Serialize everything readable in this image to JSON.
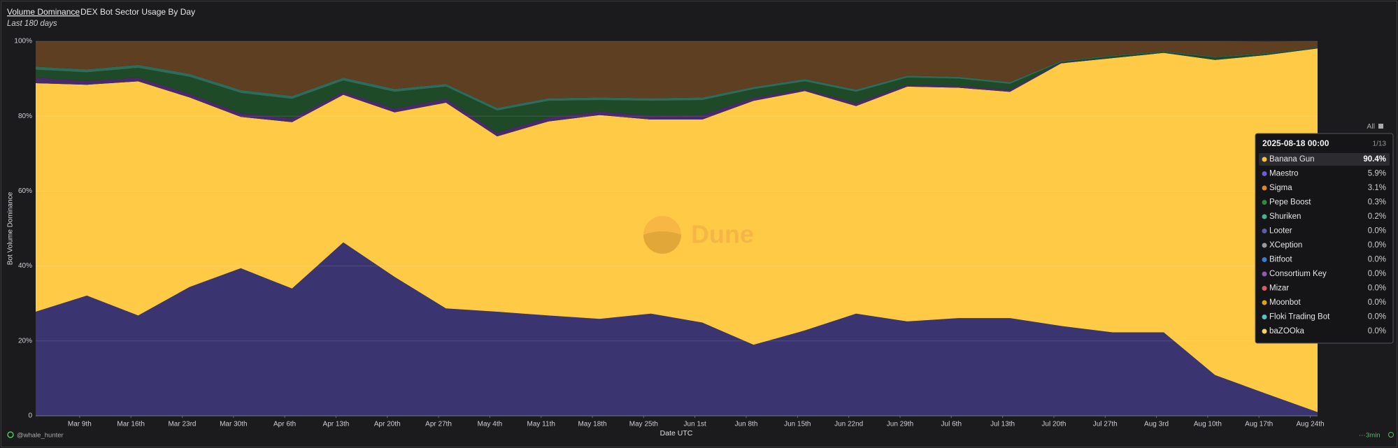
{
  "title": "Volume Dominance",
  "subtitle": "DEX Bot Sector Usage By Day",
  "period": "Last 180 days",
  "watermark": "Dune",
  "author": "@whale_hunter",
  "refresh": "3min",
  "legend_toggle": "All",
  "chart_data": {
    "type": "stacked_area",
    "x_label": "Date UTC",
    "y_label": "Bot Volume Dominance",
    "x": [
      "2025-03-03",
      "2025-03-10",
      "2025-03-17",
      "2025-03-24",
      "2025-03-31",
      "2025-04-07",
      "2025-04-14",
      "2025-04-21",
      "2025-04-28",
      "2025-05-05",
      "2025-05-12",
      "2025-05-19",
      "2025-05-26",
      "2025-06-02",
      "2025-06-09",
      "2025-06-16",
      "2025-06-23",
      "2025-06-30",
      "2025-07-07",
      "2025-07-14",
      "2025-07-21",
      "2025-07-28",
      "2025-08-04",
      "2025-08-11",
      "2025-08-18",
      "2025-08-25"
    ],
    "xlim": [
      "2025-03-03",
      "2025-08-25"
    ],
    "xticks": [
      {
        "value": "2025-03-09",
        "label": "Mar 9th"
      },
      {
        "value": "2025-03-16",
        "label": "Mar 16th"
      },
      {
        "value": "2025-03-23",
        "label": "Mar 23rd"
      },
      {
        "value": "2025-03-30",
        "label": "Mar 30th"
      },
      {
        "value": "2025-04-06",
        "label": "Apr 6th"
      },
      {
        "value": "2025-04-13",
        "label": "Apr 13th"
      },
      {
        "value": "2025-04-20",
        "label": "Apr 20th"
      },
      {
        "value": "2025-04-27",
        "label": "Apr 27th"
      },
      {
        "value": "2025-05-04",
        "label": "May 4th"
      },
      {
        "value": "2025-05-11",
        "label": "May 11th"
      },
      {
        "value": "2025-05-18",
        "label": "May 18th"
      },
      {
        "value": "2025-05-25",
        "label": "May 25th"
      },
      {
        "value": "2025-06-01",
        "label": "Jun 1st"
      },
      {
        "value": "2025-06-08",
        "label": "Jun 8th"
      },
      {
        "value": "2025-06-15",
        "label": "Jun 15th"
      },
      {
        "value": "2025-06-22",
        "label": "Jun 22nd"
      },
      {
        "value": "2025-06-29",
        "label": "Jun 29th"
      },
      {
        "value": "2025-07-06",
        "label": "Jul 6th"
      },
      {
        "value": "2025-07-13",
        "label": "Jul 13th"
      },
      {
        "value": "2025-07-20",
        "label": "Jul 20th"
      },
      {
        "value": "2025-07-27",
        "label": "Jul 27th"
      },
      {
        "value": "2025-08-03",
        "label": "Aug 3rd"
      },
      {
        "value": "2025-08-10",
        "label": "Aug 10th"
      },
      {
        "value": "2025-08-17",
        "label": "Aug 17th"
      },
      {
        "value": "2025-08-24",
        "label": "Aug 24th"
      }
    ],
    "ylim": [
      0,
      100
    ],
    "yticks": [
      0,
      {
        "value": 20,
        "label": "20%"
      },
      {
        "value": 40,
        "label": "40%"
      },
      {
        "value": 60,
        "label": "60%"
      },
      {
        "value": 80,
        "label": "80%"
      },
      {
        "value": 100,
        "label": "100%"
      }
    ],
    "grid": true,
    "series": [
      {
        "name": "Maestro",
        "color": "#3a3570",
        "values": [
          27.8,
          32.1,
          26.8,
          34.4,
          39.4,
          34.0,
          46.3,
          37.1,
          28.7,
          27.8,
          26.8,
          25.9,
          27.3,
          24.9,
          19.0,
          22.8,
          27.3,
          25.2,
          26.1,
          26.1,
          24.0,
          22.3,
          22.3,
          10.9,
          5.9,
          1.0
        ]
      },
      {
        "name": "Banana Gun",
        "color": "#ffcb47",
        "values": [
          61.0,
          56.3,
          62.5,
          50.6,
          40.4,
          44.4,
          39.4,
          43.9,
          54.9,
          46.8,
          51.8,
          54.4,
          51.8,
          54.2,
          65.1,
          63.9,
          55.4,
          62.7,
          61.5,
          60.4,
          70.1,
          73.2,
          74.6,
          84.1,
          90.4,
          97.1
        ]
      },
      {
        "name": "Looter",
        "color": "#4a2a6a",
        "values": [
          1.5,
          1.0,
          1.0,
          1.0,
          1.0,
          1.0,
          0.8,
          1.0,
          1.0,
          1.0,
          1.0,
          1.0,
          1.0,
          1.2,
          0.8,
          0.5,
          0.8,
          0.5,
          0.5,
          0.5,
          0.2,
          0,
          0,
          0,
          0,
          0
        ]
      },
      {
        "name": "Pepe Boost",
        "color": "#1f4a27",
        "values": [
          2.1,
          2.3,
          2.6,
          4.5,
          5.4,
          5.2,
          3.0,
          4.5,
          3.3,
          5.9,
          4.5,
          3.0,
          4.0,
          4.0,
          2.3,
          2.1,
          3.0,
          1.9,
          1.9,
          1.6,
          0.2,
          0.5,
          0.2,
          0.7,
          0.3,
          0.2
        ]
      },
      {
        "name": "Shuriken",
        "color": "#2e6b58",
        "values": [
          0.8,
          0.8,
          0.8,
          0.8,
          0.8,
          0.8,
          0.8,
          0.8,
          0.7,
          0.7,
          0.7,
          0.7,
          0.7,
          0.7,
          0.6,
          0.6,
          0.6,
          0.5,
          0.5,
          0.5,
          0.2,
          0.2,
          0.2,
          0.2,
          0.2,
          0.1
        ]
      },
      {
        "name": "Sigma",
        "color": "#5e3f22",
        "values": [
          6.8,
          7.5,
          6.3,
          8.7,
          13.0,
          14.6,
          9.7,
          12.7,
          11.4,
          17.8,
          15.2,
          15.0,
          15.2,
          15.0,
          12.2,
          10.1,
          12.9,
          9.2,
          9.5,
          10.9,
          5.3,
          3.8,
          2.7,
          4.1,
          3.1,
          1.6
        ]
      }
    ]
  },
  "tooltip": {
    "date": "2025-08-18 00:00",
    "page": "1/13",
    "names": [
      "Banana Gun",
      "Maestro",
      "Sigma",
      "Pepe Boost",
      "Shuriken",
      "Looter",
      "XCeption",
      "Bitfoot",
      "Consortium Key",
      "Mizar",
      "Moonbot",
      "Floki Trading Bot",
      "baZOOka"
    ],
    "colors": [
      "#f7c244",
      "#6a5ce0",
      "#e0852a",
      "#2e8b3e",
      "#4cae8f",
      "#5b5ea8",
      "#9a9a9a",
      "#3a7bd5",
      "#8e5bb0",
      "#e0566a",
      "#d9a21c",
      "#5cc2b8",
      "#f4d35e"
    ],
    "values": [
      90.4,
      5.9,
      3.1,
      0.3,
      0.2,
      0,
      0,
      0,
      0,
      0,
      0,
      0,
      0
    ],
    "value_labels": [
      "90.4%",
      "5.9%",
      "3.1%",
      "0.3%",
      "0.2%",
      "0.0%",
      "0.0%",
      "0.0%",
      "0.0%",
      "0.0%",
      "0.0%",
      "0.0%",
      "0.0%"
    ]
  }
}
